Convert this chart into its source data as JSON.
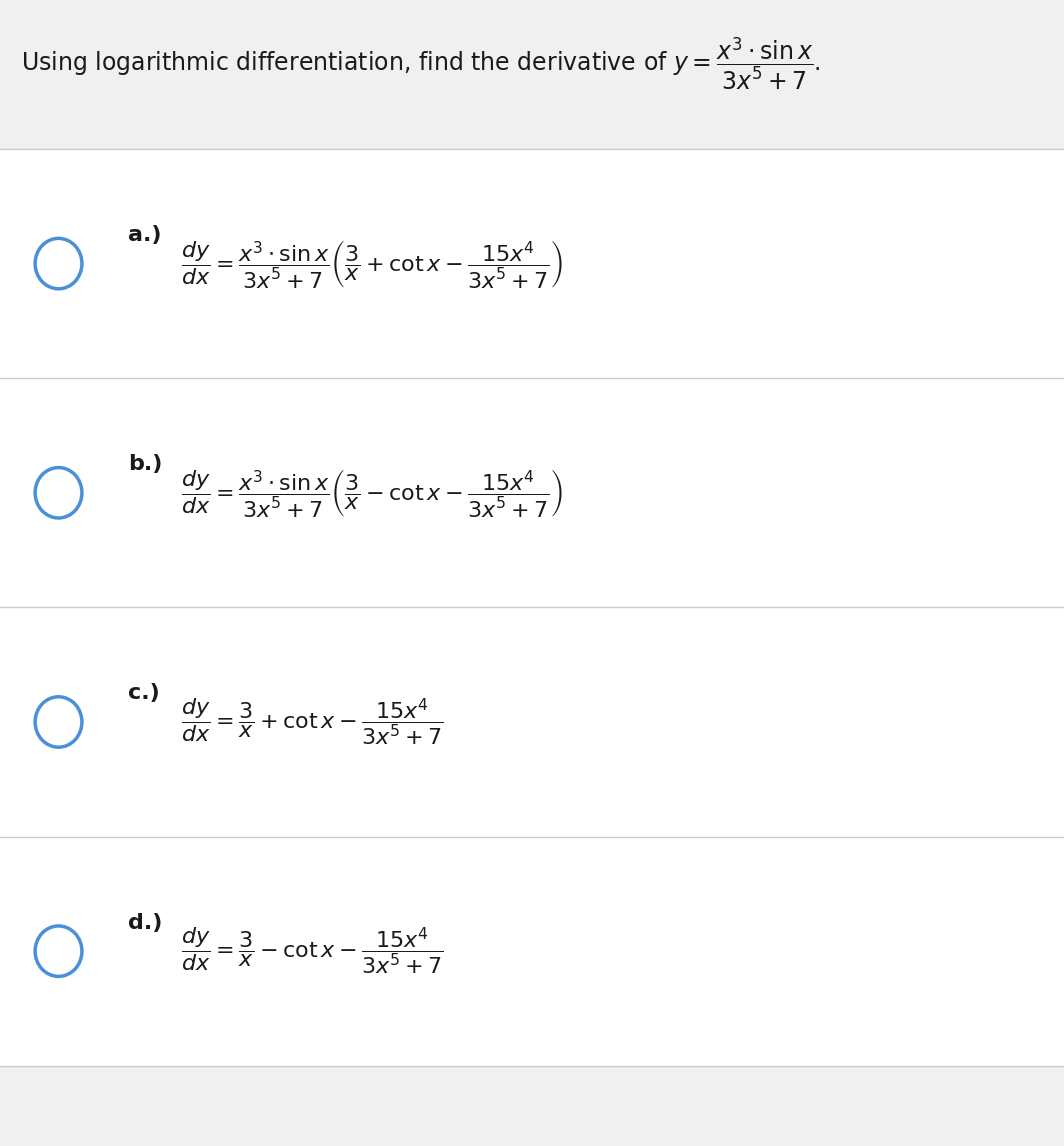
{
  "bg_color": "#f0f0f0",
  "white_color": "#ffffff",
  "text_color": "#1a1a1a",
  "divider_color": "#cccccc",
  "circle_edge_color": "#4a90d9",
  "question_text": "Using logarithmic differentiation, find the derivative of $y = \\dfrac{x^3 \\cdot \\sin x}{3x^5+7}$.",
  "options": [
    {
      "label": "a.)",
      "formula": "$\\dfrac{dy}{dx} = \\dfrac{x^3 \\cdot \\sin x}{3x^5+7}\\left(\\dfrac{3}{x} + \\cot x - \\dfrac{15x^4}{3x^5+7}\\right)$"
    },
    {
      "label": "b.)",
      "formula": "$\\dfrac{dy}{dx} = \\dfrac{x^3 \\cdot \\sin x}{3x^5+7}\\left(\\dfrac{3}{x} - \\cot x - \\dfrac{15x^4}{3x^5+7}\\right)$"
    },
    {
      "label": "c.)",
      "formula": "$\\dfrac{dy}{dx} = \\dfrac{3}{x} + \\cot x - \\dfrac{15x^4}{3x^5+7}$"
    },
    {
      "label": "d.)",
      "formula": "$\\dfrac{dy}{dx} = \\dfrac{3}{x} - \\cot x - \\dfrac{15x^4}{3x^5+7}$"
    }
  ],
  "fig_width": 10.64,
  "fig_height": 11.46
}
